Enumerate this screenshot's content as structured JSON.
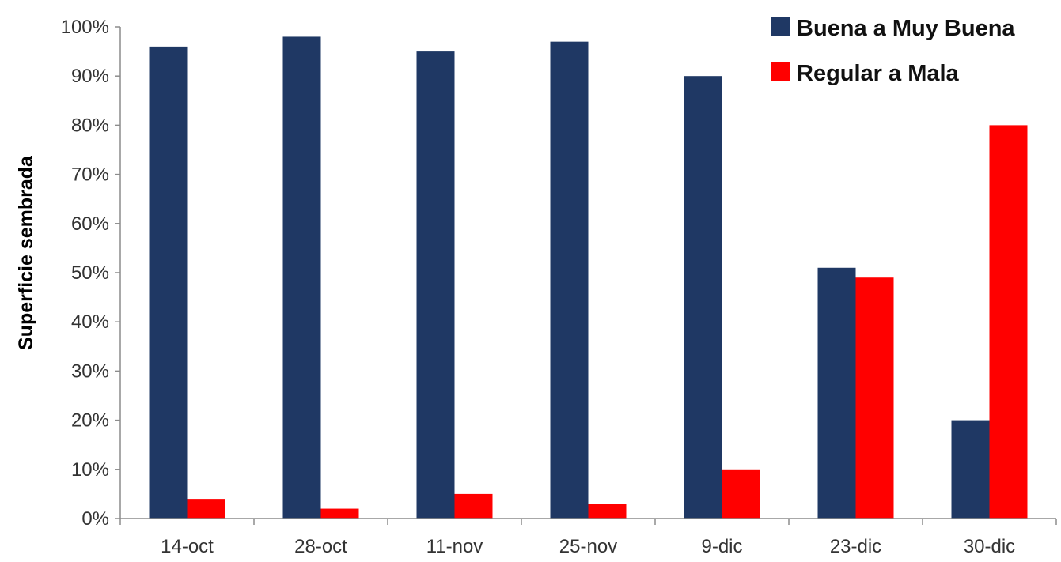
{
  "chart_data": {
    "type": "bar",
    "categories": [
      "14-oct",
      "28-oct",
      "11-nov",
      "25-nov",
      "9-dic",
      "23-dic",
      "30-dic"
    ],
    "series": [
      {
        "name": "Buena a Muy Buena",
        "values": [
          96,
          98,
          95,
          97,
          90,
          51,
          20
        ],
        "color": "#1f3864"
      },
      {
        "name": "Regular a Mala",
        "values": [
          4,
          2,
          5,
          3,
          10,
          49,
          80
        ],
        "color": "#ff0000"
      }
    ],
    "title": "",
    "xlabel": "",
    "ylabel": "Superficie sembrada",
    "ylim": [
      0,
      100
    ],
    "yticks": [
      "0%",
      "10%",
      "20%",
      "30%",
      "40%",
      "50%",
      "60%",
      "70%",
      "80%",
      "90%",
      "100%"
    ],
    "grid": false,
    "legend_position": "top-right"
  }
}
